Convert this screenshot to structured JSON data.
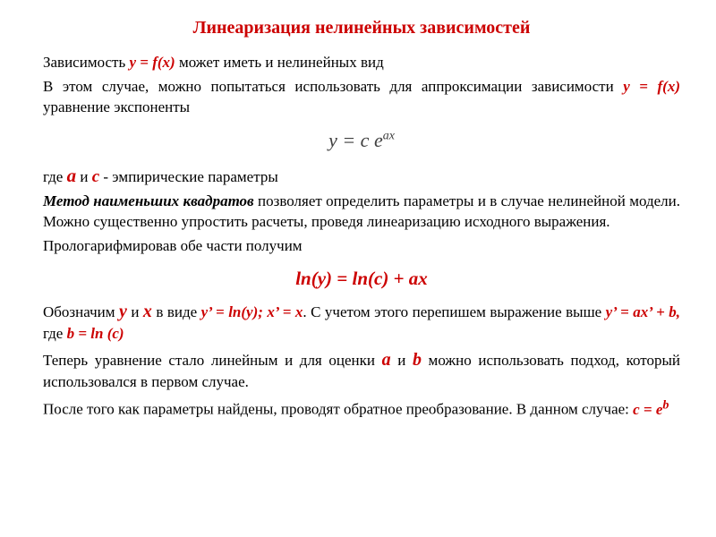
{
  "colors": {
    "accent": "#cc0000",
    "text": "#000000",
    "eq_gray": "#404040",
    "background": "#ffffff"
  },
  "fonts": {
    "family": "Times New Roman",
    "body_size_pt": 13,
    "title_size_pt": 15,
    "eq_center_size_pt": 16
  },
  "title": "Линеаризация нелинейных зависимостей",
  "p1": {
    "t1": "Зависимость ",
    "f1": "y = f(x)",
    "t2": " может иметь и нелинейных вид"
  },
  "p2": {
    "t1": "В этом случае, можно попытаться использовать для аппроксимации зависимости ",
    "f1": "y = f(x)",
    "t2": " уравнение экспоненты"
  },
  "eq_exp": {
    "lhs": "y = c e",
    "sup": "ax"
  },
  "p3": {
    "t1": "где ",
    "a": "a",
    "t2": " и ",
    "c": "c",
    "t3": "  - эмпирические параметры"
  },
  "p4": {
    "b1": "Метод наименьших квадратов",
    "t1": " позволяет определить параметры и в случае нелинейной модели. Можно существенно упростить расчеты, проведя линеаризацию исходного выражения."
  },
  "p5": "Прологарифмировав обе части получим",
  "eq_ln": "ln(y) = ln(c) + ax",
  "p6": {
    "t1": "Обозначим  ",
    "y": "y",
    "t2": " и ",
    "x": "x",
    "t3": " в виде ",
    "sub1": "y’ = ln(y); x’ = x",
    "t4": ". С учетом этого перепишем выражение выше ",
    "sub2": "y’ = ax’ + b,",
    "t5": " где ",
    "sub3": "b = ln (c)"
  },
  "p7": {
    "t1": "Теперь уравнение стало линейным и для оценки ",
    "a": "a",
    "t2": " и  ",
    "b": "b",
    "t3": " можно использовать подход, который использовался в первом случае."
  },
  "p8": {
    "t1": "После того как параметры найдены, проводят обратное преобразование. В данном случае: ",
    "eq": "c = e",
    "sup": "b"
  }
}
